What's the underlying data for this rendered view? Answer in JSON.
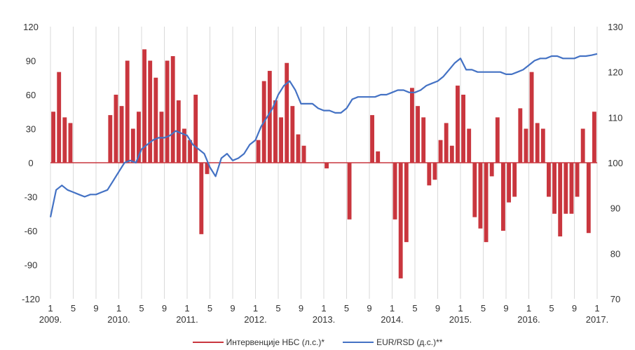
{
  "chart_data": {
    "type": "bar+line",
    "x_start": "2009-01",
    "x_end": "2017-01",
    "x_ticks": [
      {
        "month": "1",
        "year": "2009."
      },
      {
        "month": "5",
        "year": ""
      },
      {
        "month": "9",
        "year": ""
      },
      {
        "month": "1",
        "year": "2010."
      },
      {
        "month": "5",
        "year": ""
      },
      {
        "month": "9",
        "year": ""
      },
      {
        "month": "1",
        "year": "2011."
      },
      {
        "month": "5",
        "year": ""
      },
      {
        "month": "9",
        "year": ""
      },
      {
        "month": "1",
        "year": "2012."
      },
      {
        "month": "5",
        "year": ""
      },
      {
        "month": "9",
        "year": ""
      },
      {
        "month": "1",
        "year": "2013."
      },
      {
        "month": "5",
        "year": ""
      },
      {
        "month": "9",
        "year": ""
      },
      {
        "month": "1",
        "year": "2014."
      },
      {
        "month": "5",
        "year": ""
      },
      {
        "month": "9",
        "year": ""
      },
      {
        "month": "1",
        "year": "2015."
      },
      {
        "month": "5",
        "year": ""
      },
      {
        "month": "9",
        "year": ""
      },
      {
        "month": "1",
        "year": "2016."
      },
      {
        "month": "5",
        "year": ""
      },
      {
        "month": "9",
        "year": ""
      },
      {
        "month": "1",
        "year": "2017."
      }
    ],
    "y_left": {
      "min": -120,
      "max": 120,
      "ticks": [
        "120",
        "90",
        "60",
        "30",
        "0",
        "-30",
        "-60",
        "-90",
        "-120"
      ]
    },
    "y_right": {
      "min": 70,
      "max": 130,
      "ticks": [
        "130",
        "120",
        "110",
        "100",
        "90",
        "80",
        "70"
      ]
    },
    "grid": "vertical",
    "legend_position": "bottom",
    "series": [
      {
        "name": "Интервенције НБС (л.с.)*",
        "type": "bar",
        "axis": "left",
        "color": "#c9363e",
        "points": [
          [
            "2009-01",
            45
          ],
          [
            "2009-02",
            80
          ],
          [
            "2009-03",
            40
          ],
          [
            "2009-04",
            35
          ],
          [
            "2009-11",
            42
          ],
          [
            "2009-12",
            60
          ],
          [
            "2010-01",
            50
          ],
          [
            "2010-02",
            90
          ],
          [
            "2010-03",
            30
          ],
          [
            "2010-04",
            45
          ],
          [
            "2010-05",
            100
          ],
          [
            "2010-06",
            90
          ],
          [
            "2010-07",
            75
          ],
          [
            "2010-08",
            45
          ],
          [
            "2010-09",
            90
          ],
          [
            "2010-10",
            94
          ],
          [
            "2010-11",
            55
          ],
          [
            "2010-12",
            30
          ],
          [
            "2011-01",
            20
          ],
          [
            "2011-02",
            60
          ],
          [
            "2011-03",
            -63
          ],
          [
            "2011-04",
            -10
          ],
          [
            "2012-01",
            20
          ],
          [
            "2012-02",
            72
          ],
          [
            "2012-03",
            81
          ],
          [
            "2012-04",
            55
          ],
          [
            "2012-05",
            40
          ],
          [
            "2012-06",
            88
          ],
          [
            "2012-07",
            50
          ],
          [
            "2012-08",
            25
          ],
          [
            "2012-09",
            15
          ],
          [
            "2013-01",
            -5
          ],
          [
            "2013-05",
            -50
          ],
          [
            "2013-09",
            42
          ],
          [
            "2013-10",
            10
          ],
          [
            "2014-01",
            -50
          ],
          [
            "2014-02",
            -102
          ],
          [
            "2014-03",
            -70
          ],
          [
            "2014-04",
            66
          ],
          [
            "2014-05",
            50
          ],
          [
            "2014-06",
            40
          ],
          [
            "2014-07",
            -20
          ],
          [
            "2014-08",
            -15
          ],
          [
            "2014-09",
            20
          ],
          [
            "2014-10",
            35
          ],
          [
            "2014-11",
            15
          ],
          [
            "2014-12",
            68
          ],
          [
            "2015-01",
            60
          ],
          [
            "2015-02",
            30
          ],
          [
            "2015-03",
            -48
          ],
          [
            "2015-04",
            -58
          ],
          [
            "2015-05",
            -70
          ],
          [
            "2015-06",
            -12
          ],
          [
            "2015-07",
            40
          ],
          [
            "2015-08",
            -60
          ],
          [
            "2015-09",
            -35
          ],
          [
            "2015-10",
            -30
          ],
          [
            "2015-11",
            48
          ],
          [
            "2015-12",
            30
          ],
          [
            "2016-01",
            80
          ],
          [
            "2016-02",
            35
          ],
          [
            "2016-03",
            30
          ],
          [
            "2016-04",
            -30
          ],
          [
            "2016-05",
            -45
          ],
          [
            "2016-06",
            -65
          ],
          [
            "2016-07",
            -45
          ],
          [
            "2016-08",
            -45
          ],
          [
            "2016-09",
            -30
          ],
          [
            "2016-10",
            30
          ],
          [
            "2016-11",
            -62
          ],
          [
            "2016-12",
            45
          ]
        ]
      },
      {
        "name": "EUR/RSD (д.с.)**",
        "type": "line",
        "axis": "right",
        "color": "#4472c4",
        "points": [
          [
            "2009-01",
            88
          ],
          [
            "2009-02",
            94
          ],
          [
            "2009-03",
            95
          ],
          [
            "2009-04",
            94
          ],
          [
            "2009-05",
            93.5
          ],
          [
            "2009-06",
            93
          ],
          [
            "2009-07",
            92.5
          ],
          [
            "2009-08",
            93
          ],
          [
            "2009-09",
            93
          ],
          [
            "2009-10",
            93.5
          ],
          [
            "2009-11",
            94
          ],
          [
            "2009-12",
            96
          ],
          [
            "2010-01",
            98
          ],
          [
            "2010-02",
            100
          ],
          [
            "2010-03",
            100.5
          ],
          [
            "2010-04",
            100
          ],
          [
            "2010-05",
            103
          ],
          [
            "2010-06",
            104
          ],
          [
            "2010-07",
            105
          ],
          [
            "2010-08",
            105.5
          ],
          [
            "2010-09",
            105.5
          ],
          [
            "2010-10",
            106
          ],
          [
            "2010-11",
            107
          ],
          [
            "2010-12",
            106.5
          ],
          [
            "2011-01",
            106
          ],
          [
            "2011-02",
            104
          ],
          [
            "2011-03",
            103
          ],
          [
            "2011-04",
            102
          ],
          [
            "2011-05",
            99
          ],
          [
            "2011-06",
            97
          ],
          [
            "2011-07",
            101
          ],
          [
            "2011-08",
            102
          ],
          [
            "2011-09",
            100.5
          ],
          [
            "2011-10",
            101
          ],
          [
            "2011-11",
            102
          ],
          [
            "2011-12",
            104
          ],
          [
            "2012-01",
            105
          ],
          [
            "2012-02",
            108
          ],
          [
            "2012-03",
            110
          ],
          [
            "2012-04",
            112
          ],
          [
            "2012-05",
            115
          ],
          [
            "2012-06",
            117
          ],
          [
            "2012-07",
            118
          ],
          [
            "2012-08",
            116
          ],
          [
            "2012-09",
            113
          ],
          [
            "2012-10",
            113
          ],
          [
            "2012-11",
            113
          ],
          [
            "2012-12",
            112
          ],
          [
            "2013-01",
            111.5
          ],
          [
            "2013-02",
            111.5
          ],
          [
            "2013-03",
            111
          ],
          [
            "2013-04",
            111
          ],
          [
            "2013-05",
            112
          ],
          [
            "2013-06",
            114
          ],
          [
            "2013-07",
            114.5
          ],
          [
            "2013-08",
            114.5
          ],
          [
            "2013-09",
            114.5
          ],
          [
            "2013-10",
            114.5
          ],
          [
            "2013-11",
            115
          ],
          [
            "2013-12",
            115
          ],
          [
            "2014-01",
            115.5
          ],
          [
            "2014-02",
            116
          ],
          [
            "2014-03",
            116
          ],
          [
            "2014-04",
            115.5
          ],
          [
            "2014-05",
            115.5
          ],
          [
            "2014-06",
            116
          ],
          [
            "2014-07",
            117
          ],
          [
            "2014-08",
            117.5
          ],
          [
            "2014-09",
            118
          ],
          [
            "2014-10",
            119
          ],
          [
            "2014-11",
            120.5
          ],
          [
            "2014-12",
            122
          ],
          [
            "2015-01",
            123
          ],
          [
            "2015-02",
            120.5
          ],
          [
            "2015-03",
            120.5
          ],
          [
            "2015-04",
            120
          ],
          [
            "2015-05",
            120
          ],
          [
            "2015-06",
            120
          ],
          [
            "2015-07",
            120
          ],
          [
            "2015-08",
            120
          ],
          [
            "2015-09",
            119.5
          ],
          [
            "2015-10",
            119.5
          ],
          [
            "2015-11",
            120
          ],
          [
            "2015-12",
            120.5
          ],
          [
            "2016-01",
            121.5
          ],
          [
            "2016-02",
            122.5
          ],
          [
            "2016-03",
            123
          ],
          [
            "2016-04",
            123
          ],
          [
            "2016-05",
            123.5
          ],
          [
            "2016-06",
            123.5
          ],
          [
            "2016-07",
            123
          ],
          [
            "2016-08",
            123
          ],
          [
            "2016-09",
            123
          ],
          [
            "2016-10",
            123.5
          ],
          [
            "2016-11",
            123.5
          ],
          [
            "2016-12",
            123.7
          ],
          [
            "2017-01",
            124
          ]
        ]
      }
    ]
  },
  "legend": [
    {
      "label": "Интервенције НБС (л.с.)*",
      "color": "#c9363e"
    },
    {
      "label": "EUR/RSD (д.с.)**",
      "color": "#4472c4"
    }
  ]
}
